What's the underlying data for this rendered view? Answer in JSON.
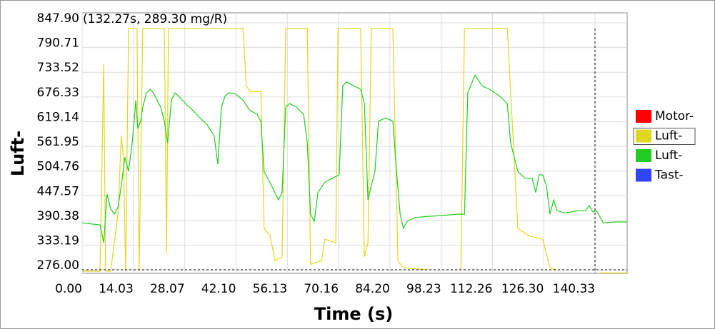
{
  "chart_data": {
    "type": "line",
    "annotation": "(132.27s, 289.30 mg/R)",
    "xlabel": "Time (s)",
    "ylabel": "Luft-",
    "xlim": [
      0,
      149.1
    ],
    "ylim": [
      268,
      871
    ],
    "xticks": [
      {
        "value": 0,
        "label": "0.00"
      },
      14.03,
      28.07,
      {
        "value": 42.1,
        "label": "42.10"
      },
      56.13,
      70.16,
      {
        "value": 84.2,
        "label": "84.20"
      },
      98.23,
      112.26,
      {
        "value": 126.3,
        "label": "126.30"
      },
      140.33
    ],
    "yticks": [
      {
        "value": 276,
        "label": "276.00"
      },
      333.19,
      390.38,
      447.57,
      504.76,
      561.95,
      619.14,
      676.33,
      733.52,
      790.71,
      {
        "value": 847.9,
        "label": "847.90"
      }
    ],
    "grid": true,
    "legend": "right",
    "series": [
      {
        "name": "Motor-",
        "color": "#ff0000",
        "x": [],
        "values": []
      },
      {
        "name": "Luft-",
        "color": "#e0d820",
        "x": [
          0,
          3.9,
          4.9,
          5.9,
          6.4,
          7.8,
          9.8,
          10.7,
          11.3,
          11.9,
          12.7,
          15.0,
          15.6,
          16.6,
          22.5,
          23.1,
          23.6,
          44.0,
          44.9,
          45.9,
          48.9,
          49.8,
          51.4,
          52.8,
          54.7,
          55.7,
          61.6,
          62.5,
          65.5,
          66.4,
          69.4,
          70.0,
          76.2,
          77.2,
          78.2,
          79.1,
          85.0,
          86.4,
          87.9,
          94.8,
          null,
          103.6,
          104.6,
          116.3,
          119.2,
          122.1,
          126.0,
          128.0,
          129.9,
          null,
          141.7,
          149.1
        ],
        "values": [
          273,
          273,
          273,
          752,
          273,
          273,
          405,
          587,
          537,
          273,
          835,
          835,
          273,
          835,
          835,
          314,
          835,
          835,
          702,
          689,
          689,
          372,
          355,
          297,
          306,
          835,
          835,
          289,
          297,
          347,
          339,
          835,
          835,
          306,
          339,
          835,
          835,
          297,
          281,
          276,
          null,
          276,
          835,
          835,
          372,
          355,
          347,
          281,
          276,
          null,
          269,
          269
        ]
      },
      {
        "name": "Luft-",
        "color": "#22cc22",
        "x": [
          0,
          4.9,
          5.9,
          6.8,
          7.8,
          8.8,
          9.8,
          10.7,
          11.7,
          12.7,
          13.7,
          14.7,
          15.2,
          16.0,
          16.6,
          17.6,
          18.6,
          19.5,
          20.5,
          21.5,
          22.5,
          23.4,
          24.4,
          25.4,
          26.4,
          28.3,
          30.3,
          32.2,
          34.2,
          36.1,
          37.1,
          38.1,
          39.1,
          40.1,
          42.0,
          44.0,
          45.9,
          47.9,
          48.9,
          49.8,
          51.8,
          53.7,
          54.7,
          55.7,
          56.7,
          58.6,
          60.6,
          61.6,
          62.5,
          63.5,
          64.5,
          66.4,
          68.4,
          70.3,
          71.3,
          72.3,
          74.3,
          76.2,
          77.2,
          78.2,
          79.1,
          80.1,
          81.1,
          83.0,
          85.0,
          86.0,
          87.0,
          87.9,
          88.9,
          90.9,
          94.8,
          98.7,
          102.6,
          104.6,
          105.5,
          107.5,
          109.4,
          111.4,
          114.3,
          116.3,
          117.2,
          119.2,
          121.1,
          123.1,
          124.1,
          125.0,
          126.0,
          127.0,
          128.0,
          129.0,
          129.9,
          131.9,
          133.8,
          135.8,
          137.8,
          138.7,
          139.7,
          140.7,
          142.6,
          145.6,
          149.1
        ],
        "values": [
          385,
          380,
          339,
          451,
          418,
          405,
          421,
          471,
          537,
          504,
          570,
          669,
          603,
          620,
          653,
          686,
          694,
          686,
          669,
          653,
          620,
          570,
          669,
          686,
          678,
          661,
          645,
          628,
          612,
          587,
          521,
          653,
          678,
          686,
          683,
          669,
          645,
          636,
          620,
          504,
          471,
          438,
          455,
          653,
          661,
          653,
          636,
          570,
          405,
          388,
          455,
          479,
          488,
          496,
          702,
          711,
          702,
          694,
          661,
          438,
          471,
          504,
          620,
          628,
          620,
          504,
          405,
          372,
          388,
          397,
          400,
          402,
          405,
          405,
          686,
          727,
          702,
          694,
          678,
          661,
          570,
          504,
          488,
          488,
          455,
          496,
          496,
          471,
          405,
          438,
          413,
          408,
          410,
          413,
          413,
          425,
          410,
          413,
          385,
          387,
          387
        ]
      },
      {
        "name": "Tast-",
        "color": "#3344ff",
        "x": [],
        "values": []
      }
    ]
  }
}
